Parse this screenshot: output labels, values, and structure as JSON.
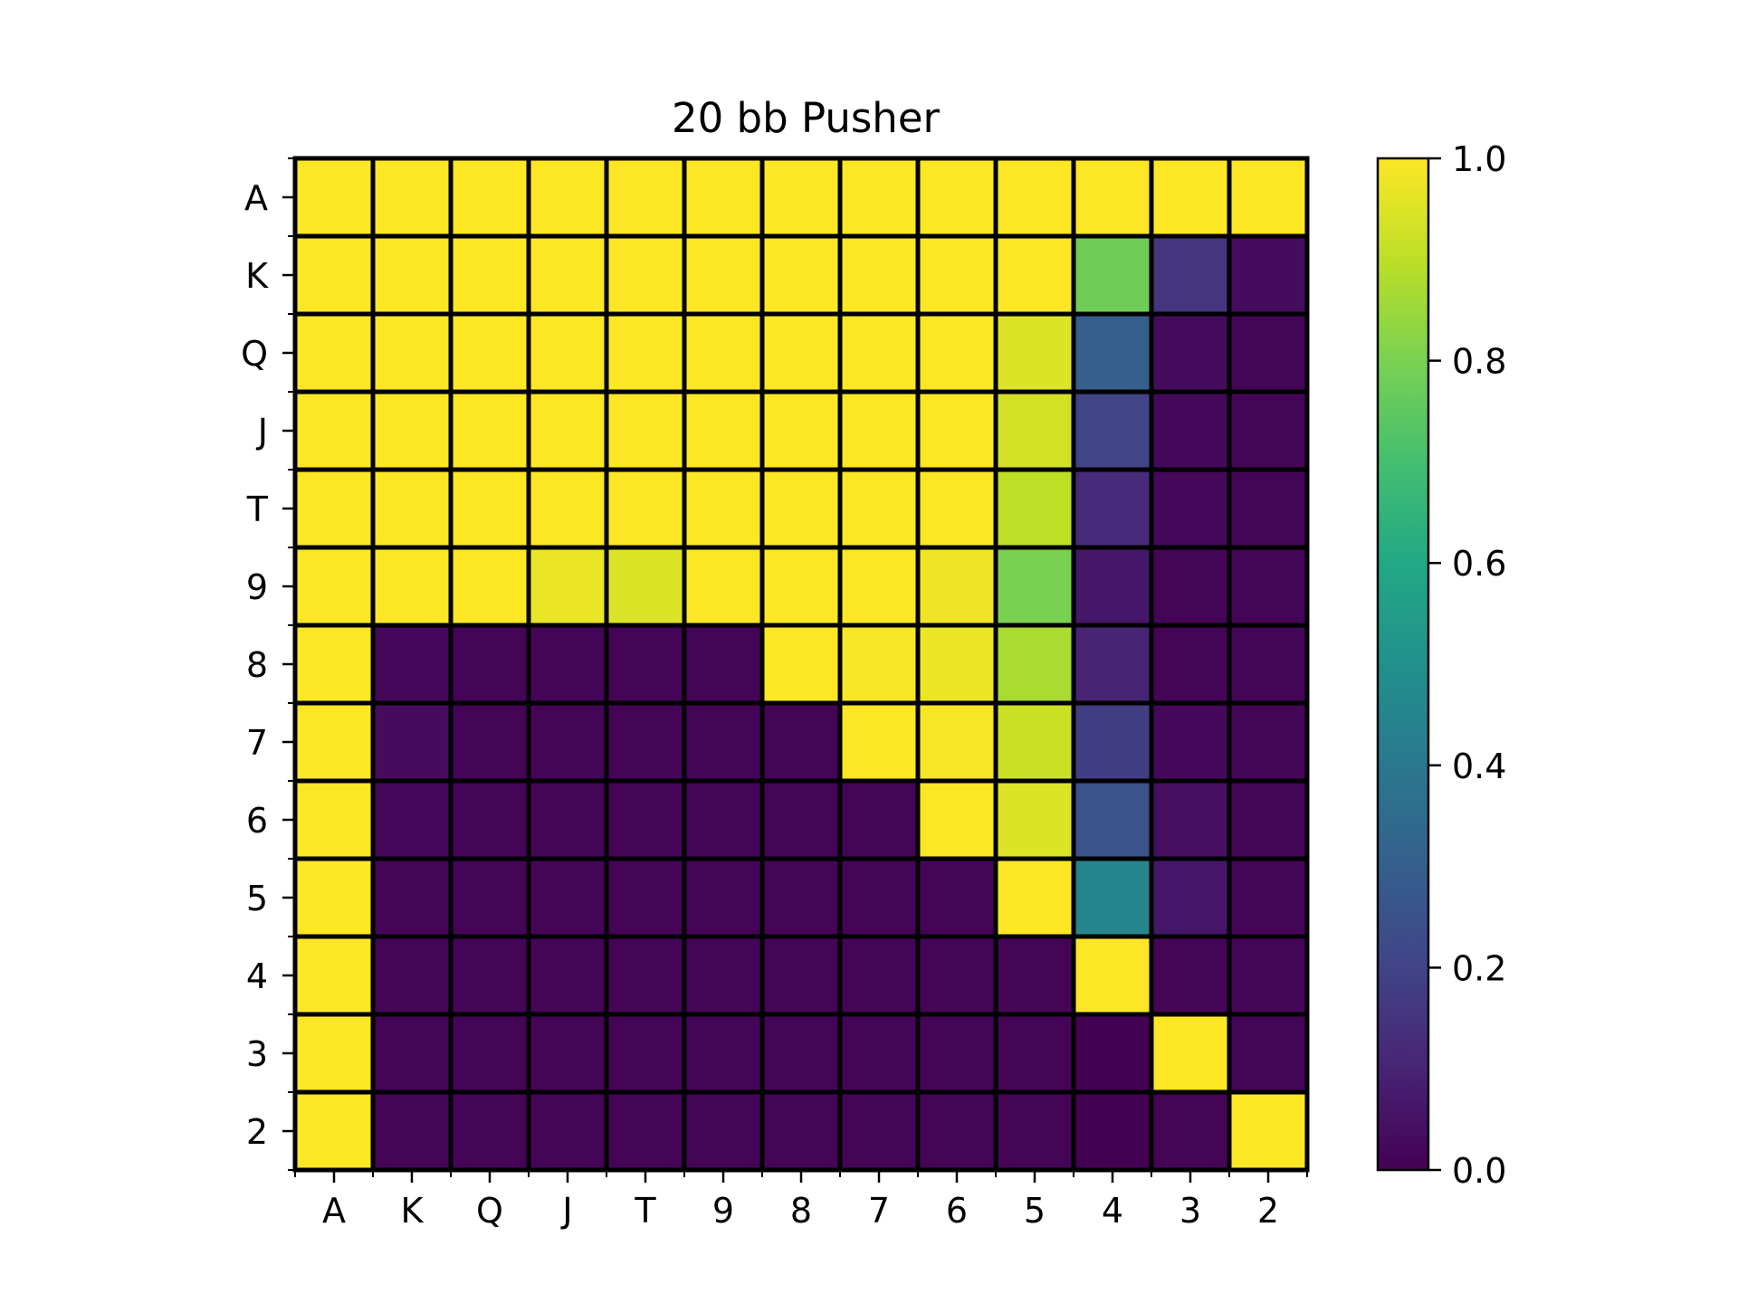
{
  "chart_data": {
    "type": "heatmap",
    "title": "20 bb Pusher",
    "x_categories": [
      "A",
      "K",
      "Q",
      "J",
      "T",
      "9",
      "8",
      "7",
      "6",
      "5",
      "4",
      "3",
      "2"
    ],
    "y_categories": [
      "A",
      "K",
      "Q",
      "J",
      "T",
      "9",
      "8",
      "7",
      "6",
      "5",
      "4",
      "3",
      "2"
    ],
    "values": [
      [
        1,
        1,
        1,
        1,
        1,
        1,
        1,
        1,
        1,
        1,
        1,
        1,
        1
      ],
      [
        1,
        1,
        1,
        1,
        1,
        1,
        1,
        1,
        1,
        1,
        0.78,
        0.15,
        0.03
      ],
      [
        1,
        1,
        1,
        1,
        1,
        1,
        1,
        1,
        1,
        0.95,
        0.3,
        0.03,
        0.01
      ],
      [
        1,
        1,
        1,
        1,
        1,
        1,
        1,
        1,
        1,
        0.93,
        0.2,
        0.02,
        0.01
      ],
      [
        1,
        1,
        1,
        1,
        1,
        1,
        1,
        1,
        1,
        0.9,
        0.12,
        0.02,
        0.01
      ],
      [
        1,
        1,
        1,
        0.97,
        0.95,
        1,
        1,
        1,
        0.98,
        0.8,
        0.06,
        0.01,
        0.01
      ],
      [
        1,
        0.02,
        0.01,
        0.01,
        0.01,
        0.01,
        1,
        0.99,
        0.97,
        0.87,
        0.1,
        0.01,
        0.01
      ],
      [
        1,
        0.03,
        0.01,
        0.01,
        0.01,
        0.01,
        0.01,
        1,
        0.99,
        0.92,
        0.18,
        0.02,
        0.01
      ],
      [
        1,
        0.02,
        0.01,
        0.01,
        0.01,
        0.01,
        0.01,
        0.01,
        1,
        0.95,
        0.25,
        0.04,
        0.01
      ],
      [
        1,
        0.01,
        0.01,
        0.01,
        0.01,
        0.01,
        0.01,
        0.01,
        0.01,
        1,
        0.45,
        0.06,
        0.01
      ],
      [
        1,
        0.01,
        0.01,
        0.01,
        0.01,
        0.01,
        0.01,
        0.01,
        0.01,
        0.01,
        1,
        0.01,
        0.01
      ],
      [
        1,
        0.01,
        0.01,
        0.01,
        0.01,
        0.01,
        0.01,
        0.01,
        0.01,
        0.01,
        0.0,
        1,
        0.01
      ],
      [
        1,
        0.01,
        0.01,
        0.01,
        0.01,
        0.01,
        0.01,
        0.01,
        0.01,
        0.01,
        0.0,
        0.01,
        1
      ]
    ],
    "colormap": "viridis",
    "colorbar": {
      "range": [
        0,
        1
      ],
      "ticks": [
        0.0,
        0.2,
        0.4,
        0.6,
        0.8,
        1.0
      ],
      "tick_labels": [
        "0.0",
        "0.2",
        "0.4",
        "0.6",
        "0.8",
        "1.0"
      ]
    },
    "cell_border_color": "#000000",
    "xlabel": "",
    "ylabel": ""
  }
}
